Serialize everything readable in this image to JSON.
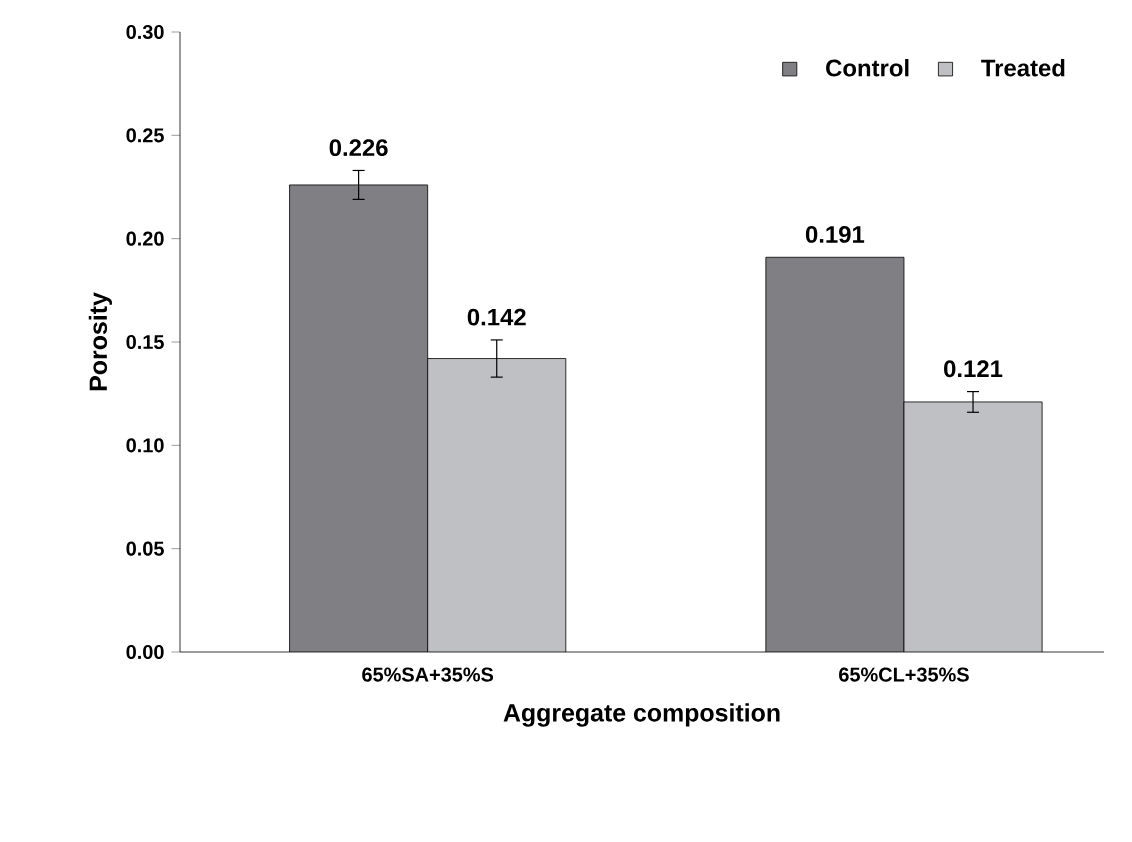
{
  "chart_data": {
    "type": "bar",
    "xlabel": "Aggregate composition",
    "ylabel": "Porosity",
    "categories": [
      "65%SA+35%S",
      "65%CL+35%S"
    ],
    "series": [
      {
        "name": "Control",
        "color": "#7f7f84",
        "values": [
          0.226,
          0.191
        ],
        "errors": [
          0.007,
          null
        ]
      },
      {
        "name": "Treated",
        "color": "#bfc0c4",
        "values": [
          0.142,
          0.121
        ],
        "errors": [
          0.009,
          0.005
        ]
      }
    ],
    "ylim": [
      0,
      0.3
    ],
    "yticks": [
      {
        "value": 0,
        "label": "0.00"
      },
      {
        "value": 0.05,
        "label": "0.05"
      },
      {
        "value": 0.1,
        "label": "0.10"
      },
      {
        "value": 0.15,
        "label": "0.15"
      },
      {
        "value": 0.2,
        "label": "0.20"
      },
      {
        "value": 0.25,
        "label": "0.25"
      },
      {
        "value": 0.3,
        "label": "0.30"
      }
    ],
    "data_labels": true,
    "legend": "top right",
    "grid": false
  }
}
